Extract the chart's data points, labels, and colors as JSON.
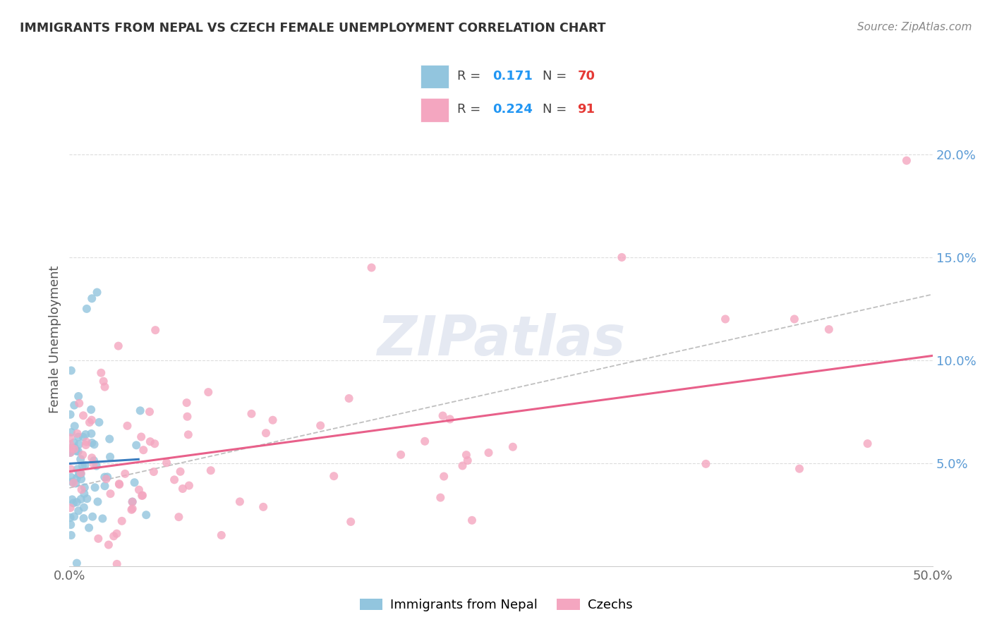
{
  "title": "IMMIGRANTS FROM NEPAL VS CZECH FEMALE UNEMPLOYMENT CORRELATION CHART",
  "source": "Source: ZipAtlas.com",
  "ylabel": "Female Unemployment",
  "xlim": [
    0.0,
    0.5
  ],
  "ylim": [
    0.0,
    0.22
  ],
  "xtick_positions": [
    0.0,
    0.1,
    0.2,
    0.3,
    0.4,
    0.5
  ],
  "xticklabels": [
    "0.0%",
    "",
    "",
    "",
    "",
    "50.0%"
  ],
  "ytick_positions": [
    0.05,
    0.1,
    0.15,
    0.2
  ],
  "ytick_labels": [
    "5.0%",
    "10.0%",
    "15.0%",
    "20.0%"
  ],
  "legend_blue_r": "0.171",
  "legend_blue_n": "70",
  "legend_pink_r": "0.224",
  "legend_pink_n": "91",
  "blue_color": "#92c5de",
  "pink_color": "#f4a6c0",
  "blue_line_color": "#3b7dbf",
  "pink_line_color": "#e8608a",
  "dash_line_color": "#aaaaaa",
  "watermark": "ZIPatlas",
  "watermark_color": "#d0d8e8",
  "grid_color": "#dddddd",
  "title_color": "#333333",
  "source_color": "#888888",
  "ylabel_color": "#555555",
  "tick_label_color": "#666666",
  "right_tick_color": "#5b9bd5"
}
